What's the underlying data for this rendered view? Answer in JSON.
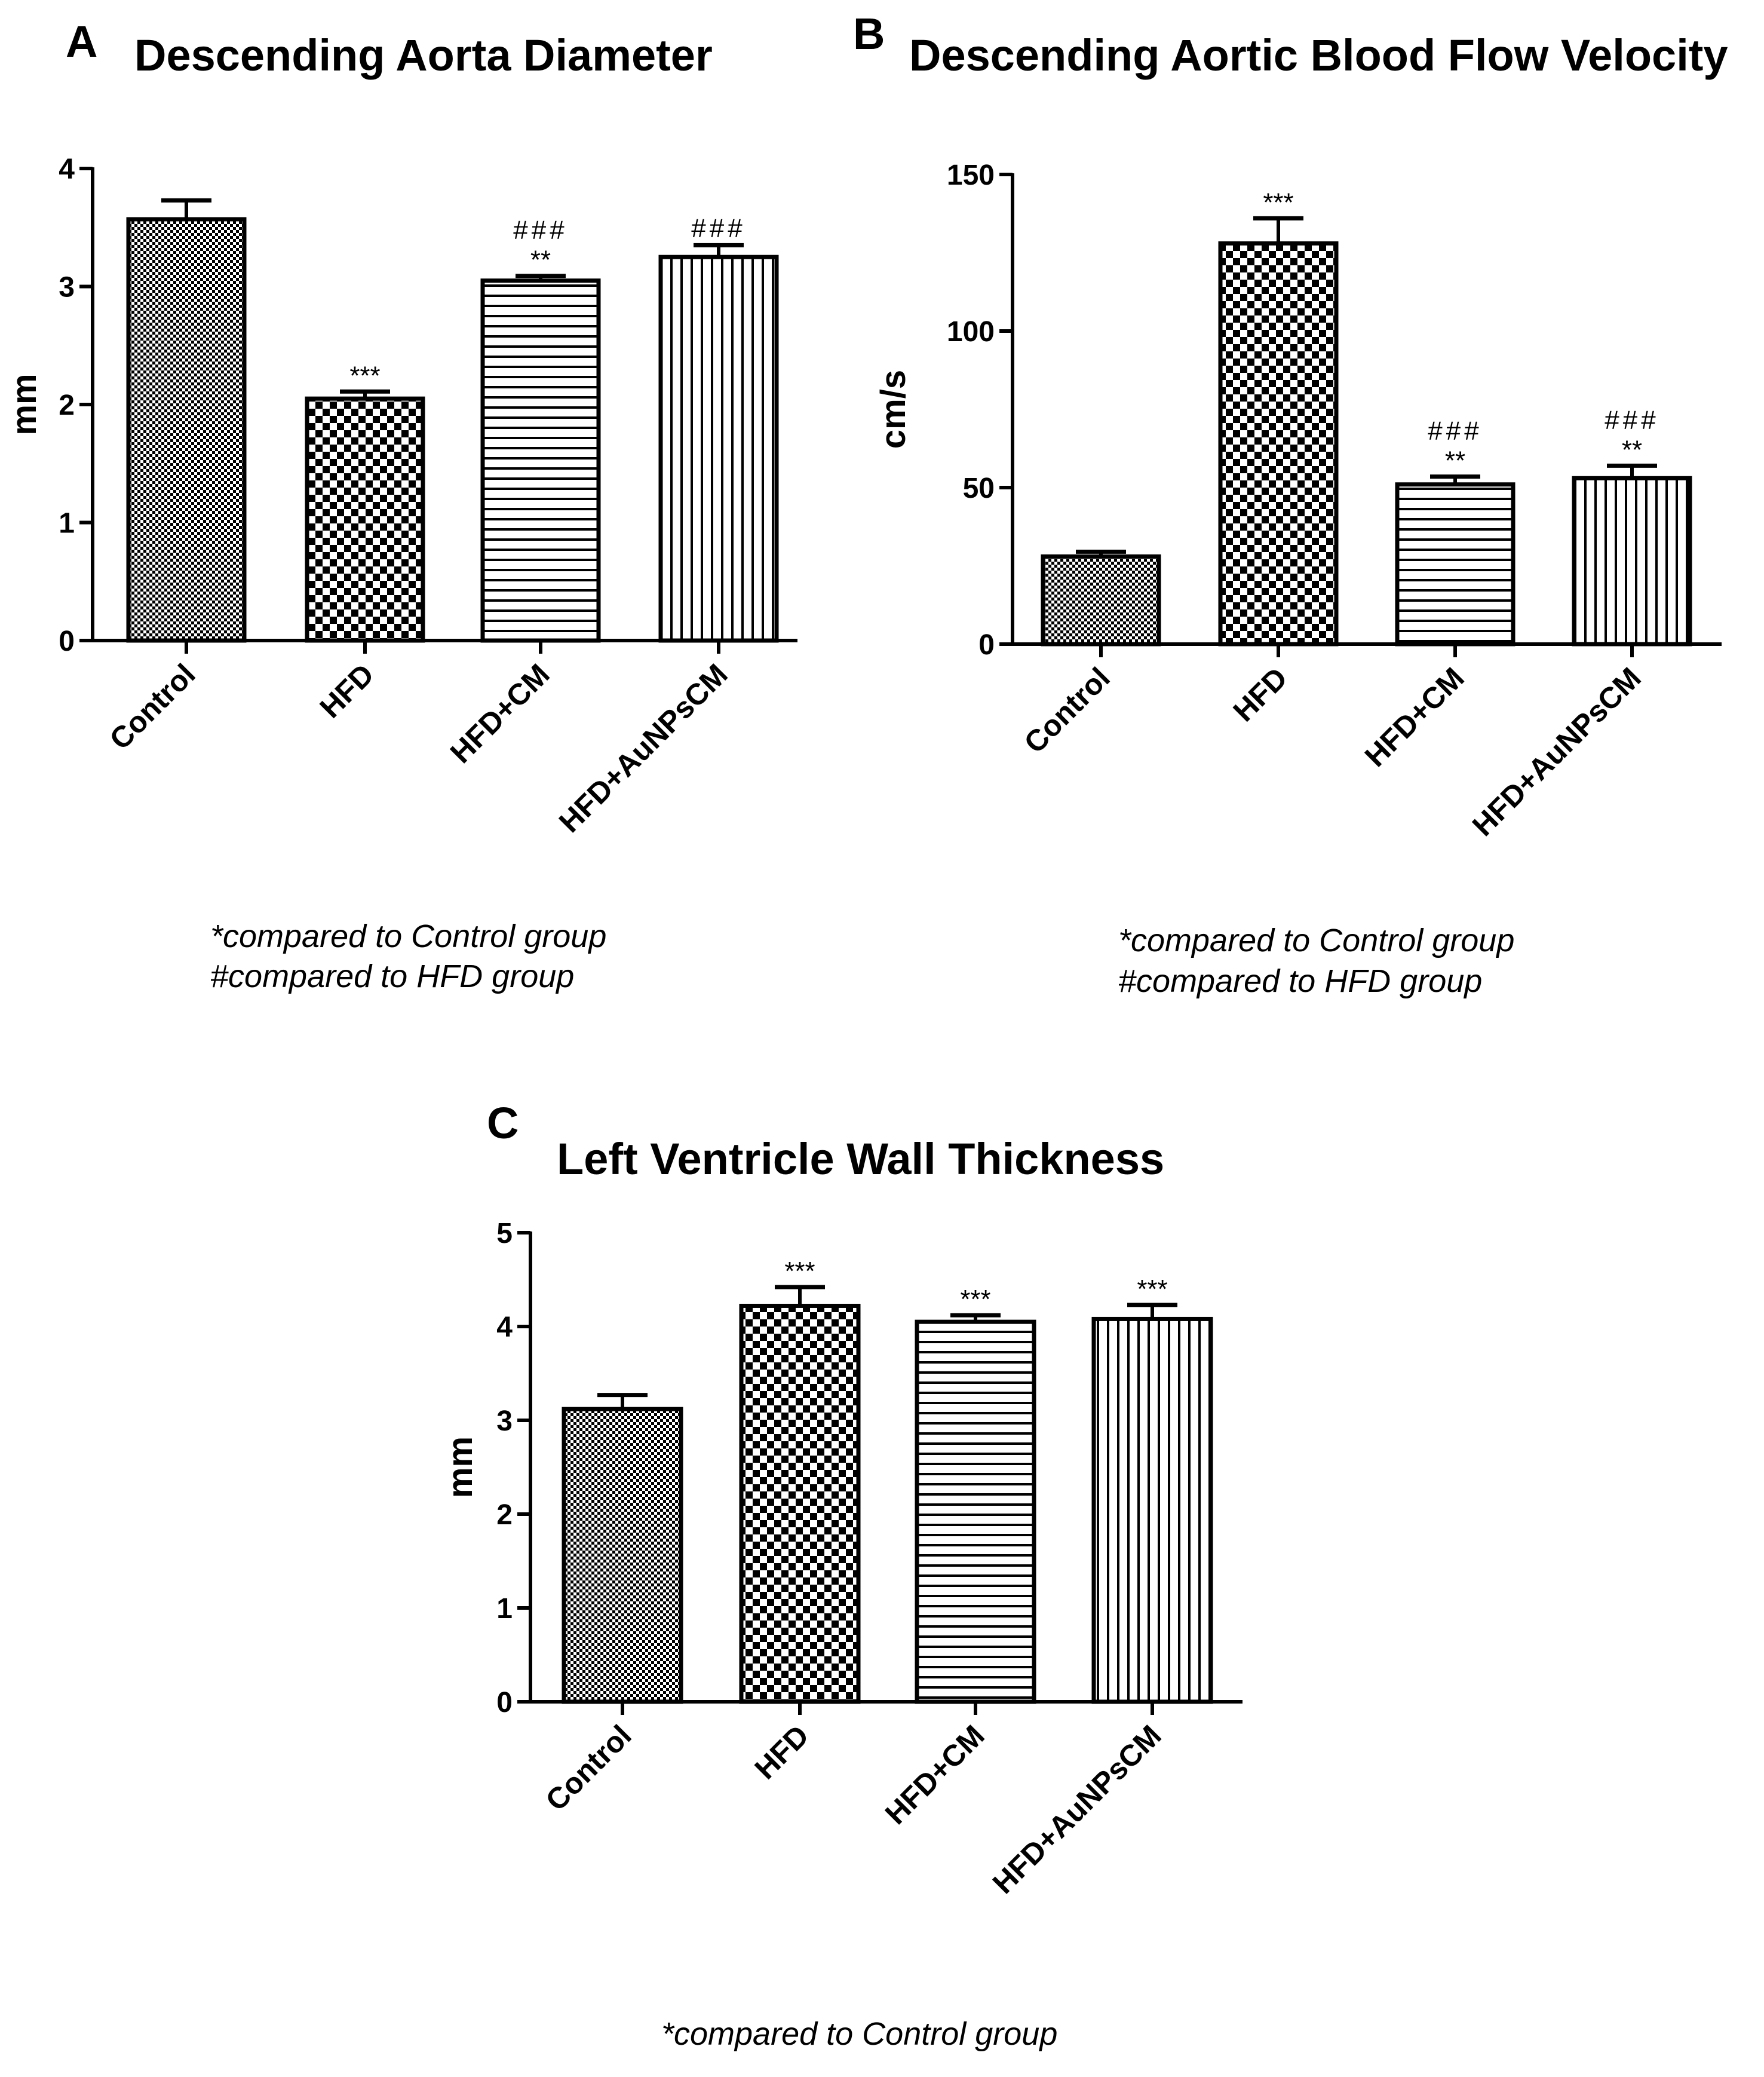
{
  "colors": {
    "ink": "#000000",
    "background": "#ffffff"
  },
  "chart_data": [
    {
      "panel": "A",
      "type": "bar",
      "title": "Descending Aorta Diameter",
      "xlabel": "",
      "ylabel": "mm",
      "ylim": [
        0,
        4
      ],
      "yticks": [
        0,
        1,
        2,
        3,
        4
      ],
      "categories": [
        "Control",
        "HFD",
        "HFD+CM",
        "HFD+AuNPsCM"
      ],
      "patterns": [
        "crosshatch",
        "checker",
        "horizontal",
        "vertical"
      ],
      "values": [
        3.57,
        2.05,
        3.05,
        3.25
      ],
      "errors": [
        0.16,
        0.06,
        0.04,
        0.1
      ],
      "annotations": [
        {
          "star": "",
          "hash": ""
        },
        {
          "star": "***",
          "hash": ""
        },
        {
          "star": "**",
          "hash": "###"
        },
        {
          "star": "",
          "hash": "###"
        }
      ],
      "notes": [
        "*compared to Control group",
        "#compared to HFD group"
      ]
    },
    {
      "panel": "B",
      "type": "bar",
      "title": "Descending Aortic Blood Flow Velocity",
      "xlabel": "",
      "ylabel": "cm/s",
      "ylim": [
        0,
        150
      ],
      "yticks": [
        0,
        50,
        100,
        150
      ],
      "categories": [
        "Control",
        "HFD",
        "HFD+CM",
        "HFD+AuNPsCM"
      ],
      "patterns": [
        "crosshatch",
        "checker",
        "horizontal",
        "vertical"
      ],
      "values": [
        28,
        128,
        51,
        53
      ],
      "errors": [
        1.5,
        8,
        2.5,
        4
      ],
      "annotations": [
        {
          "star": "",
          "hash": ""
        },
        {
          "star": "***",
          "hash": ""
        },
        {
          "star": "**",
          "hash": "###"
        },
        {
          "star": "**",
          "hash": "###"
        }
      ],
      "notes": [
        "*compared to Control group",
        "#compared to HFD group"
      ]
    },
    {
      "panel": "C",
      "type": "bar",
      "title": "Left Ventricle Wall Thickness",
      "xlabel": "",
      "ylabel": "mm",
      "ylim": [
        0,
        5
      ],
      "yticks": [
        0,
        1,
        2,
        3,
        4,
        5
      ],
      "categories": [
        "Control",
        "HFD",
        "HFD+CM",
        "HFD+AuNPsCM"
      ],
      "patterns": [
        "crosshatch",
        "checker",
        "horizontal",
        "vertical"
      ],
      "values": [
        3.12,
        4.22,
        4.05,
        4.08
      ],
      "errors": [
        0.15,
        0.2,
        0.07,
        0.15
      ],
      "annotations": [
        {
          "star": "",
          "hash": ""
        },
        {
          "star": "***",
          "hash": ""
        },
        {
          "star": "***",
          "hash": ""
        },
        {
          "star": "***",
          "hash": ""
        }
      ],
      "notes": [
        "*compared to Control group"
      ]
    }
  ]
}
